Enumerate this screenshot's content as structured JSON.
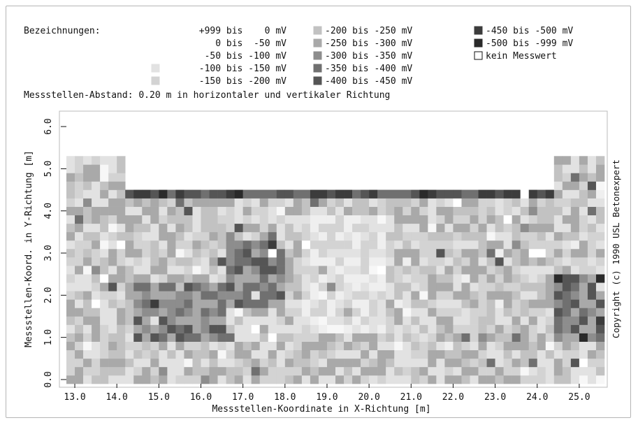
{
  "legend": {
    "heading": "Bezeichnungen:",
    "entries": [
      {
        "label": "+999 bis    0 mV",
        "color": "#ffffff",
        "swatch": false
      },
      {
        "label": "0 bis  -50 mV",
        "color": "#f7f7f7",
        "swatch": false
      },
      {
        "label": "-50 bis -100 mV",
        "color": "#efefef",
        "swatch": false
      },
      {
        "label": "-100 bis -150 mV",
        "color": "#e2e2e2",
        "swatch": true
      },
      {
        "label": "-150 bis -200 mV",
        "color": "#d3d3d3",
        "swatch": true
      },
      {
        "label": "-200 bis -250 mV",
        "color": "#c2c2c2",
        "swatch": true
      },
      {
        "label": "-250 bis -300 mV",
        "color": "#a9a9a9",
        "swatch": true
      },
      {
        "label": "-300 bis -350 mV",
        "color": "#8d8d8d",
        "swatch": true
      },
      {
        "label": "-350 bis -400 mV",
        "color": "#707070",
        "swatch": true
      },
      {
        "label": "-400 bis -450 mV",
        "color": "#555555",
        "swatch": true
      },
      {
        "label": "-450 bis -500 mV",
        "color": "#3c3c3c",
        "swatch": true
      },
      {
        "label": "-500 bis -999 mV",
        "color": "#2a2a2a",
        "swatch": true
      },
      {
        "label": "kein Messwert",
        "color": "#ffffff",
        "swatch": true,
        "outlined": true
      }
    ]
  },
  "spacing_note": "Messstellen-Abstand: 0.20 m in horizontaler und vertikaler Richtung",
  "copyright": "Copyright (c) 1990 USL Betonexpert",
  "chart_data": {
    "type": "heatmap",
    "title": "",
    "xlabel": "Messstellen-Koordinate in X-Richtung [m]",
    "ylabel": "Messstellen-Koord. in Y-Richtung [m]",
    "xlim": [
      12.8,
      25.6
    ],
    "ylim": [
      -0.1,
      6.2
    ],
    "x_ticks": [
      "13.0",
      "14.0",
      "15.0",
      "16.0",
      "17.0",
      "18.0",
      "19.0",
      "20.0",
      "21.0",
      "22.0",
      "23.0",
      "24.0",
      "25.0"
    ],
    "y_ticks": [
      "0.0",
      "1.0",
      "2.0",
      "3.0",
      "4.0",
      "5.0",
      "6.0"
    ],
    "cell_size_m": 0.2,
    "outline": [
      {
        "x_from": 12.8,
        "x_to": 14.2,
        "y_top": 5.3
      },
      {
        "x_from": 14.2,
        "x_to": 24.4,
        "y_top": 4.5
      },
      {
        "x_from": 24.4,
        "x_to": 25.6,
        "y_top": 5.3
      }
    ],
    "dark_band_rows_y": [
      0.8
    ],
    "regions": [
      {
        "name": "low-potential cluster",
        "x_range": [
          14.4,
          16.6
        ],
        "y_range": [
          0.8,
          2.4
        ],
        "range": "-350 bis -450 mV"
      },
      {
        "name": "low-potential cluster",
        "x_range": [
          16.6,
          18.0
        ],
        "y_range": [
          1.6,
          3.4
        ],
        "range": "-300 bis -400 mV"
      },
      {
        "name": "low-potential cluster",
        "x_range": [
          24.4,
          25.6
        ],
        "y_range": [
          0.8,
          2.6
        ],
        "range": "-350 bis -450 mV"
      },
      {
        "name": "top dark edge",
        "x_range": [
          14.2,
          24.4
        ],
        "y_range": [
          4.3,
          4.5
        ],
        "range": "-400 bis -500 mV"
      },
      {
        "name": "light zone",
        "x_range": [
          18.4,
          20.4
        ],
        "y_range": [
          1.2,
          4.0
        ],
        "range": "-100 bis -200 mV"
      }
    ]
  }
}
